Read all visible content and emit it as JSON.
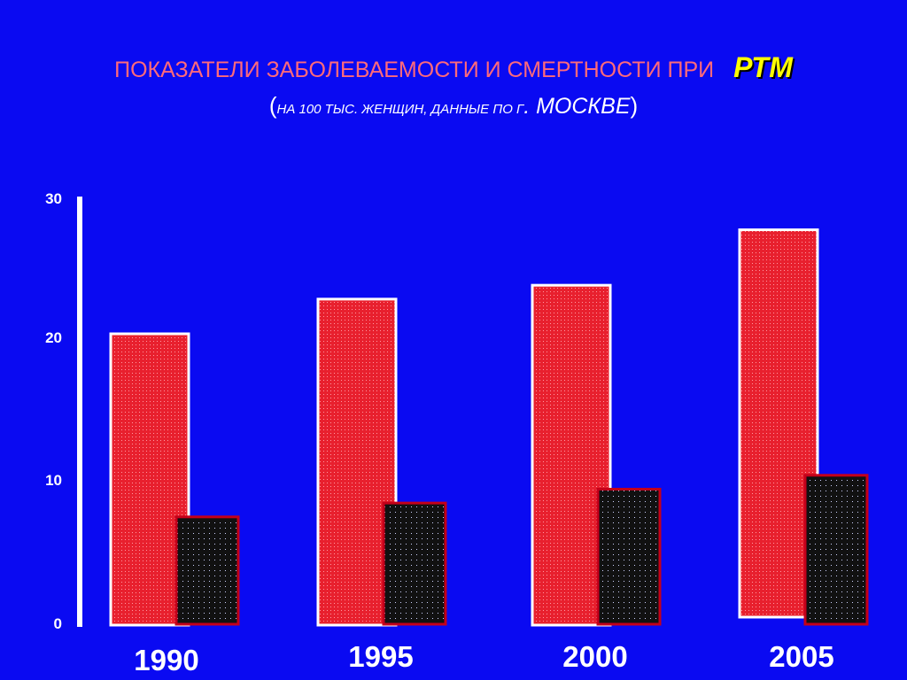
{
  "title": {
    "line1": "ПОКАЗАТЕЛИ ЗАБОЛЕВАЕМОСТИ И СМЕРТНОСТИ ПРИ",
    "line1_highlight": "РТМ",
    "line2_open": "(",
    "line2_small": "НА 100 ТЫС. ЖЕНЩИН, ДАННЫЕ ПО Г",
    "line2_big": ". МОСКВЕ",
    "line2_close": ")"
  },
  "colors": {
    "background": "#0a0af2",
    "incidence": "#e8202e",
    "mortality": "#111111",
    "incidence_border": "#ffffff",
    "mortality_border": "#c4001a",
    "title": "#ff6a7a",
    "highlight": "#ffff00"
  },
  "chart_data": {
    "type": "bar",
    "categories": [
      "1990",
      "1995",
      "2000",
      "2005"
    ],
    "series": [
      {
        "values": [
          21,
          23.5,
          24.5,
          28.5
        ]
      },
      {
        "values": [
          7.8,
          8.8,
          9.8,
          10.8
        ]
      }
    ],
    "yticks": [
      "0",
      "10",
      "20",
      "30"
    ],
    "ylim": [
      0,
      30
    ],
    "grid": false,
    "legend": "none"
  }
}
